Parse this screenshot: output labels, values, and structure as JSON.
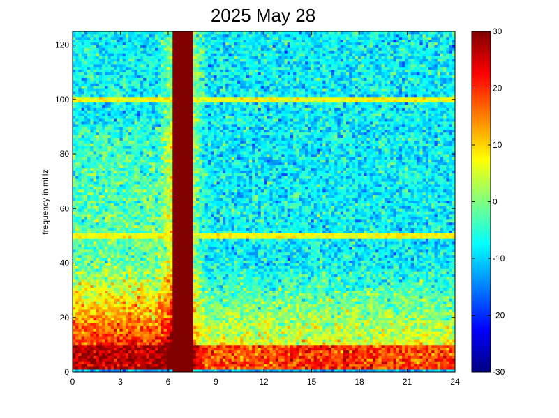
{
  "chart_data": {
    "type": "heatmap",
    "title": "2025 May 28",
    "xlabel": "",
    "ylabel": "frequency in mHz",
    "xlim": [
      0,
      24
    ],
    "ylim": [
      0,
      125
    ],
    "x_ticks": [
      0,
      3,
      6,
      9,
      12,
      15,
      18,
      21,
      24
    ],
    "x_tick_labels": [
      "0",
      "3",
      "6",
      "9",
      "12",
      "15",
      "18",
      "21",
      "24"
    ],
    "y_ticks": [
      0,
      20,
      40,
      60,
      80,
      100,
      120
    ],
    "y_tick_labels": [
      "0",
      "20",
      "40",
      "60",
      "80",
      "100",
      "120"
    ],
    "colorbar": {
      "colormap": "jet",
      "clim": [
        -30,
        30
      ],
      "ticks": [
        -30,
        -20,
        -10,
        0,
        10,
        20,
        30
      ],
      "tick_labels": [
        "-30",
        "-20",
        "-10",
        "0",
        "10",
        "20",
        "30"
      ]
    },
    "grid": false,
    "features": {
      "saturated_band": {
        "x_range": [
          6.3,
          7.5
        ],
        "value": 30
      },
      "horizontal_lines": [
        {
          "frequency": 100,
          "value": 7
        },
        {
          "frequency": 50,
          "value": 7
        }
      ],
      "low_frequency_band": {
        "frequency_range": [
          0,
          10
        ],
        "value": 22
      },
      "background_value": -8
    }
  }
}
